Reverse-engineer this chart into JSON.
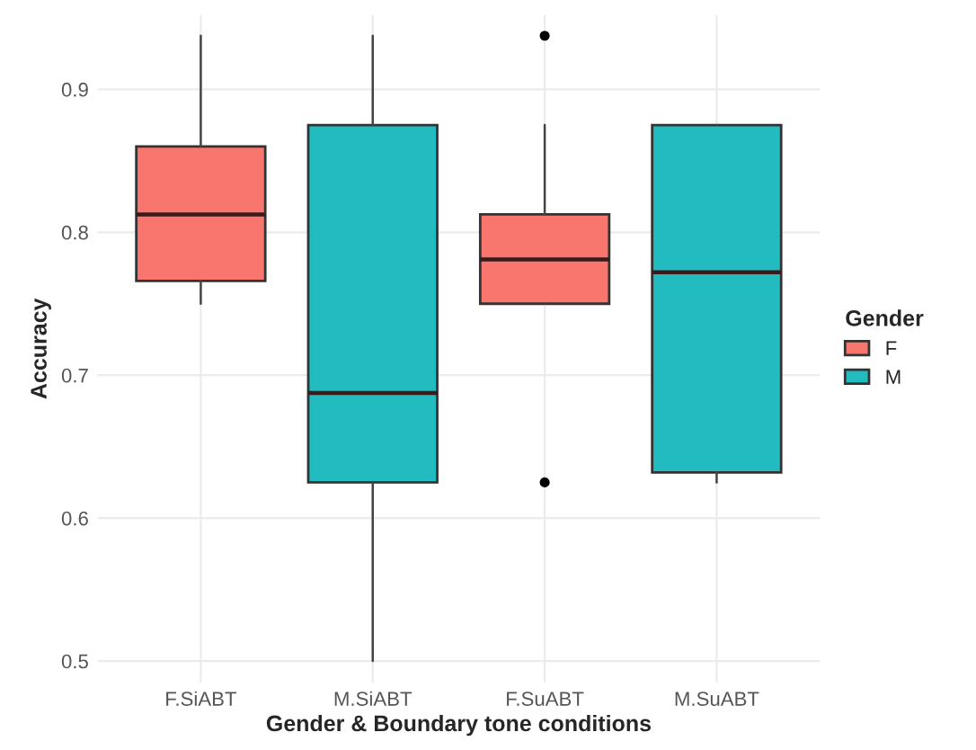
{
  "chart_data": {
    "type": "box",
    "xlabel": "Gender & Boundary tone conditions",
    "ylabel": "Accuracy",
    "legend_title": "Gender",
    "categories": [
      "F.SiABT",
      "M.SiABT",
      "F.SuABT",
      "M.SuABT"
    ],
    "series": [
      {
        "name": "F",
        "color": "#f8766d",
        "boxes": [
          {
            "low": 0.75,
            "q1": 0.766,
            "median": 0.8125,
            "q3": 0.86,
            "high": 0.9375
          },
          null,
          {
            "low": 0.75,
            "q1": 0.75,
            "median": 0.781,
            "q3": 0.8125,
            "high": 0.875,
            "outliers": [
              0.9375,
              0.625
            ]
          },
          null
        ]
      },
      {
        "name": "M",
        "color": "#22bcc0",
        "boxes": [
          null,
          {
            "low": 0.5,
            "q1": 0.625,
            "median": 0.6875,
            "q3": 0.875,
            "high": 0.9375
          },
          null,
          {
            "low": 0.625,
            "q1": 0.632,
            "median": 0.772,
            "q3": 0.875,
            "high": 0.875
          }
        ]
      }
    ],
    "ylim": [
      0.485,
      0.952
    ],
    "yticks": [
      0.5,
      0.6,
      0.7,
      0.8,
      0.9
    ],
    "grid": true,
    "legend": "right"
  }
}
